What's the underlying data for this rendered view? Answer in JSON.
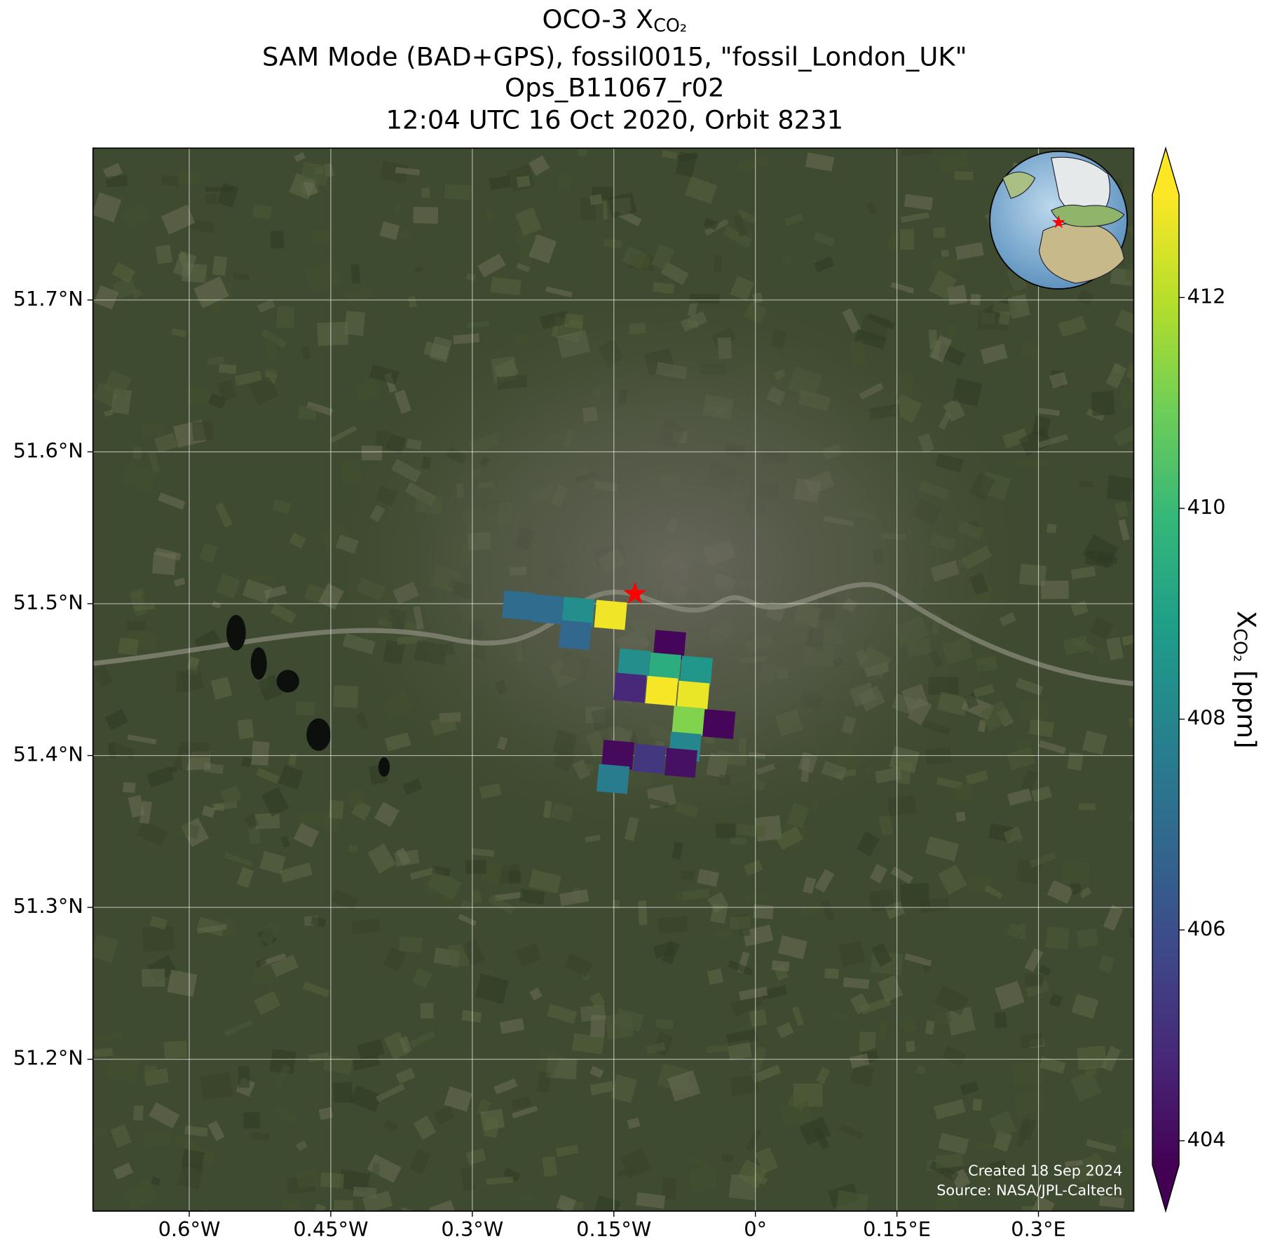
{
  "chart_data": {
    "type": "map",
    "title": {
      "main": "OCO-3 X",
      "main_subscript": "CO₂",
      "lines": [
        "SAM Mode (BAD+GPS), fossil0015, \"fossil_London_UK\"",
        "Ops_B11067_r02",
        "12:04 UTC 16 Oct 2020, Orbit 8231"
      ]
    },
    "xlim": [
      -0.702,
      0.401
    ],
    "ylim": [
      51.1,
      51.8
    ],
    "xticks": [
      {
        "value": -0.6,
        "label": "0.6°W"
      },
      {
        "value": -0.45,
        "label": "0.45°W"
      },
      {
        "value": -0.3,
        "label": "0.3°W"
      },
      {
        "value": -0.15,
        "label": "0.15°W"
      },
      {
        "value": 0,
        "label": "0°"
      },
      {
        "value": 0.15,
        "label": "0.15°E"
      },
      {
        "value": 0.3,
        "label": "0.3°E"
      }
    ],
    "yticks": [
      {
        "value": 51.2,
        "label": "51.2°N"
      },
      {
        "value": 51.3,
        "label": "51.3°N"
      },
      {
        "value": 51.4,
        "label": "51.4°N"
      },
      {
        "value": 51.5,
        "label": "51.5°N"
      },
      {
        "value": 51.6,
        "label": "51.6°N"
      },
      {
        "value": 51.7,
        "label": "51.7°N"
      }
    ],
    "grid": true,
    "colormap": "viridis",
    "clim": [
      403.77,
      412.98
    ],
    "cticks": [
      404,
      406,
      408,
      410,
      412
    ],
    "colorbar_label": {
      "main": "X",
      "subscript": "CO₂",
      "unit": " [ppm]"
    },
    "target": {
      "lon": -0.1277,
      "lat": 51.5064
    },
    "footprints": [
      {
        "lon": -0.2511,
        "lat": 51.4989,
        "xco2": 407.0
      },
      {
        "lon": -0.2194,
        "lat": 51.4963,
        "xco2": 407.0
      },
      {
        "lon": -0.1877,
        "lat": 51.4947,
        "xco2": 408.3
      },
      {
        "lon": -0.1534,
        "lat": 51.4926,
        "xco2": 412.8
      },
      {
        "lon": -0.1911,
        "lat": 51.4793,
        "xco2": 406.8
      },
      {
        "lon": -0.0909,
        "lat": 51.4729,
        "xco2": 403.9
      },
      {
        "lon": -0.1286,
        "lat": 51.4606,
        "xco2": 408.3
      },
      {
        "lon": -0.096,
        "lat": 51.458,
        "xco2": 409.5
      },
      {
        "lon": -0.0626,
        "lat": 51.4559,
        "xco2": 408.6
      },
      {
        "lon": -0.1329,
        "lat": 51.4447,
        "xco2": 404.8
      },
      {
        "lon": -0.0994,
        "lat": 51.4426,
        "xco2": 412.9
      },
      {
        "lon": -0.066,
        "lat": 51.4394,
        "xco2": 412.7
      },
      {
        "lon": -0.0711,
        "lat": 51.4229,
        "xco2": 411.2
      },
      {
        "lon": -0.0386,
        "lat": 51.4207,
        "xco2": 403.9
      },
      {
        "lon": -0.0746,
        "lat": 51.4059,
        "xco2": 408.0
      },
      {
        "lon": -0.1457,
        "lat": 51.4005,
        "xco2": 404.0
      },
      {
        "lon": -0.1123,
        "lat": 51.3979,
        "xco2": 405.3
      },
      {
        "lon": -0.0789,
        "lat": 51.3952,
        "xco2": 404.2
      },
      {
        "lon": -0.1509,
        "lat": 51.3846,
        "xco2": 407.6
      }
    ],
    "footer": [
      "Created 18 Sep 2024",
      "Source: NASA/JPL-Caltech"
    ]
  }
}
